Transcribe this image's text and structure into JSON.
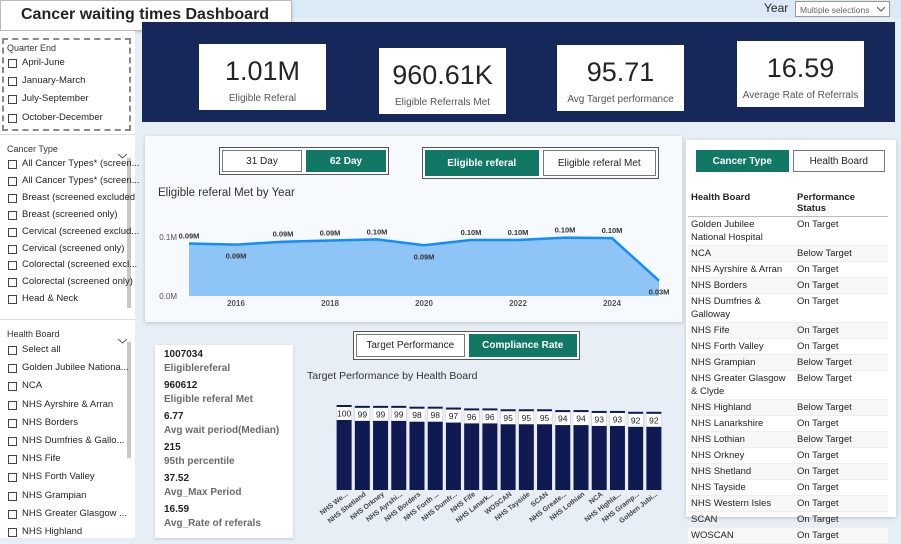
{
  "header": {
    "title": "Cancer waiting times Dashboard",
    "year_label": "Year",
    "year_selection": "Multiple selections"
  },
  "slicers": [
    {
      "title": "Quarter End",
      "items": [
        "April-June",
        "January-March",
        "July-September",
        "October-December"
      ]
    },
    {
      "title": "Cancer Type",
      "items": [
        "All Cancer Types* (screen...",
        "All Cancer Types* (screen...",
        "Breast (screened excluded",
        "Breast (screened only)",
        "Cervical (screened exclud...",
        "Cervical (screened only)",
        "Colorectal (screened excl...",
        "Colorectal (screened only)",
        "Head & Neck"
      ]
    },
    {
      "title": "Health Board",
      "items": [
        "Select all",
        "Golden Jubilee Nationa...",
        "NCA",
        "NHS Ayrshire & Arran",
        "NHS Borders",
        "NHS Dumfries & Gallo...",
        "NHS Fife",
        "NHS Forth Valley",
        "NHS Grampian",
        "NHS Greater Glasgow ...",
        "NHS Highland"
      ]
    }
  ],
  "kpis": [
    {
      "value": "1.01M",
      "label": "Eligible Referal"
    },
    {
      "value": "960.61K",
      "label": "Eligible Referrals  Met"
    },
    {
      "value": "95.71",
      "label": "Avg Target performance"
    },
    {
      "value": "16.59",
      "label": "Average Rate of Referrals"
    }
  ],
  "toggles": {
    "period": [
      {
        "label": "31 Day",
        "selected": false
      },
      {
        "label": "62 Day",
        "selected": true
      }
    ],
    "measure": [
      {
        "label": "Eligible referal",
        "selected": true
      },
      {
        "label": "Eligible referal Met",
        "selected": false
      }
    ],
    "performance": [
      {
        "label": "Target Performance",
        "selected": false
      },
      {
        "label": "Compliance Rate",
        "selected": true
      }
    ],
    "table_view": [
      {
        "label": "Cancer Type",
        "selected": true
      },
      {
        "label": "Health Board",
        "selected": false
      }
    ]
  },
  "stats": [
    {
      "value": 1007034,
      "label": "Eligiblereferal"
    },
    {
      "value": 960612,
      "label": "Eligible referal Met"
    },
    {
      "value": 6.77,
      "label": "Avg wait period(Median)"
    },
    {
      "value": 215,
      "label": "95th percentile"
    },
    {
      "value": 37.52,
      "label": "Avg_Max Period"
    },
    {
      "value": 16.59,
      "label": "Avg_Rate of referals"
    }
  ],
  "chart_data": [
    {
      "type": "area",
      "title": "Eligible referal Met by Year",
      "x": [
        2015,
        2016,
        2017,
        2018,
        2019,
        2020,
        2021,
        2022,
        2023,
        2024,
        2025
      ],
      "values": [
        89000,
        87000,
        92000,
        94000,
        96000,
        86000,
        95000,
        95000,
        99000,
        98000,
        26000
      ],
      "value_labels": [
        "0.09M",
        "0.09M",
        "0.09M",
        "0.09M",
        "0.10M",
        "0.09M",
        "0.10M",
        "0.10M",
        "0.10M",
        "0.10M",
        "0.03M"
      ],
      "xlim": [
        2015,
        2025
      ],
      "xticks": [
        2016,
        2018,
        2020,
        2022,
        2024
      ],
      "ylim": [
        0,
        150000
      ],
      "yticks": [
        {
          "value": 0,
          "label": "0.0M"
        },
        {
          "value": 100000,
          "label": "0.1M"
        }
      ],
      "color": "#118dff",
      "area_color": "#8fc4f6",
      "grid": false
    },
    {
      "type": "bar",
      "title": "Target Performance by Health Board",
      "categories": [
        "NHS We...",
        "NHS Shetland",
        "NHS Orkney",
        "NHS Ayrshi...",
        "NHS Borders",
        "NHS Forth ...",
        "NHS Dumfr...",
        "NHS Fife",
        "NHS Lanark...",
        "WOSCAN",
        "NHS Tayside",
        "SCAN",
        "NHS Greate...",
        "NHS Lothian",
        "NCA",
        "NHS Highla...",
        "NHS Gramp...",
        "Golden Jubi..."
      ],
      "values": [
        100,
        99,
        99,
        99,
        98,
        98,
        97,
        96,
        96,
        95,
        95,
        95,
        94,
        94,
        93,
        93,
        92,
        92
      ],
      "ylim": [
        0,
        100
      ],
      "color": "#101a52",
      "grid": false
    }
  ],
  "table": {
    "columns": [
      "Health Board",
      "Performance Status"
    ],
    "rows": [
      [
        "Golden Jubilee National Hospital",
        "On Target"
      ],
      [
        "NCA",
        "Below Target"
      ],
      [
        "NHS Ayrshire & Arran",
        "On Target"
      ],
      [
        "NHS Borders",
        "On Target"
      ],
      [
        "NHS Dumfries & Galloway",
        "On Target"
      ],
      [
        "NHS Fife",
        "On Target"
      ],
      [
        "NHS Forth Valley",
        "On Target"
      ],
      [
        "NHS Grampian",
        "Below Target"
      ],
      [
        "NHS Greater Glasgow & Clyde",
        "Below Target"
      ],
      [
        "NHS Highland",
        "Below Target"
      ],
      [
        "NHS Lanarkshire",
        "On Target"
      ],
      [
        "NHS Lothian",
        "Below Target"
      ],
      [
        "NHS Orkney",
        "On Target"
      ],
      [
        "NHS Shetland",
        "On Target"
      ],
      [
        "NHS Tayside",
        "On Target"
      ],
      [
        "NHS Western Isles",
        "On Target"
      ],
      [
        "SCAN",
        "On Target"
      ],
      [
        "WOSCAN",
        "On Target"
      ]
    ]
  }
}
